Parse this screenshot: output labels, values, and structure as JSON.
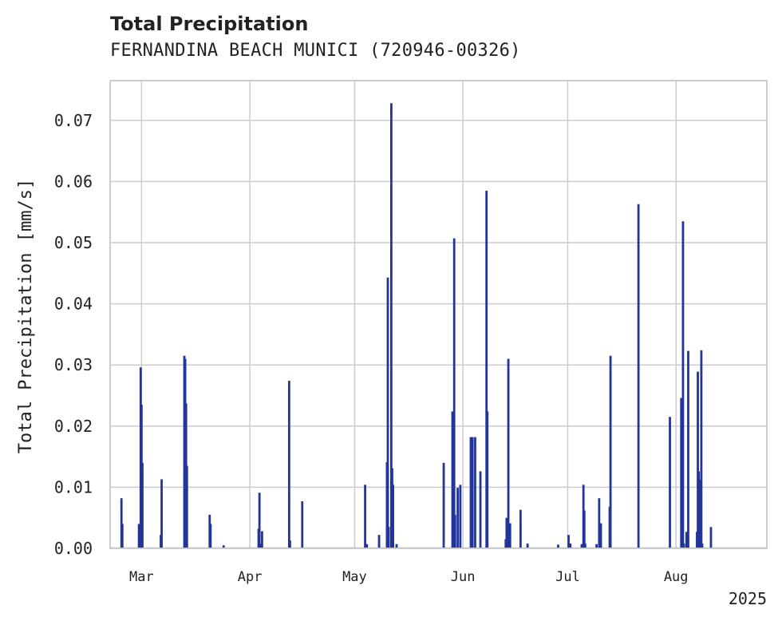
{
  "chart_data": {
    "type": "bar",
    "title": "Total Precipitation",
    "subtitle": "FERNANDINA BEACH MUNICI (720946-00326)",
    "xlabel": "",
    "ylabel": "Total Precipitation [mm/s]",
    "year_label": "2025",
    "ylim": [
      0,
      0.0765
    ],
    "yticks": [
      0.0,
      0.01,
      0.02,
      0.03,
      0.04,
      0.05,
      0.06,
      0.07
    ],
    "ytick_labels": [
      "0.00",
      "0.01",
      "0.02",
      "0.03",
      "0.04",
      "0.05",
      "0.06",
      "0.07"
    ],
    "xlim": [
      "2025-02-20",
      "2025-08-27"
    ],
    "xticks": [
      {
        "date": "2025-03-01",
        "label": "Mar"
      },
      {
        "date": "2025-04-01",
        "label": "Apr"
      },
      {
        "date": "2025-05-01",
        "label": "May"
      },
      {
        "date": "2025-06-01",
        "label": "Jun"
      },
      {
        "date": "2025-07-01",
        "label": "Jul"
      },
      {
        "date": "2025-08-01",
        "label": "Aug"
      }
    ],
    "grid": true,
    "bar_color": "#23359a",
    "series": [
      {
        "points": [
          [
            "2025-02-23T06:00",
            0.0082
          ],
          [
            "2025-02-23T12:00",
            0.004
          ],
          [
            "2025-02-28T06:00",
            0.004
          ],
          [
            "2025-02-28T12:00",
            0.0015
          ],
          [
            "2025-02-28T18:00",
            0.0296
          ],
          [
            "2025-03-01T00:00",
            0.0235
          ],
          [
            "2025-03-01T06:00",
            0.014
          ],
          [
            "2025-03-06T12:00",
            0.0022
          ],
          [
            "2025-03-06T18:00",
            0.0113
          ],
          [
            "2025-03-13T06:00",
            0.0315
          ],
          [
            "2025-03-13T12:00",
            0.031
          ],
          [
            "2025-03-13T18:00",
            0.0237
          ],
          [
            "2025-03-14T00:00",
            0.0135
          ],
          [
            "2025-03-20T12:00",
            0.0055
          ],
          [
            "2025-03-20T18:00",
            0.004
          ],
          [
            "2025-03-24T12:00",
            0.0005
          ],
          [
            "2025-04-03T12:00",
            0.0032
          ],
          [
            "2025-04-03T18:00",
            0.0091
          ],
          [
            "2025-04-04T00:00",
            0.0007
          ],
          [
            "2025-04-04T12:00",
            0.0028
          ],
          [
            "2025-04-12T06:00",
            0.0274
          ],
          [
            "2025-04-12T12:00",
            0.0013
          ],
          [
            "2025-04-16T00:00",
            0.0077
          ],
          [
            "2025-05-04T00:00",
            0.0104
          ],
          [
            "2025-05-04T12:00",
            0.0007
          ],
          [
            "2025-05-08T00:00",
            0.0022
          ],
          [
            "2025-05-10T06:00",
            0.0141
          ],
          [
            "2025-05-10T12:00",
            0.0443
          ],
          [
            "2025-05-10T18:00",
            0.0035
          ],
          [
            "2025-05-11T12:00",
            0.0728
          ],
          [
            "2025-05-11T18:00",
            0.0131
          ],
          [
            "2025-05-12T00:00",
            0.0104
          ],
          [
            "2025-05-13T00:00",
            0.0007
          ],
          [
            "2025-05-26T12:00",
            0.014
          ],
          [
            "2025-05-29T00:00",
            0.0224
          ],
          [
            "2025-05-29T12:00",
            0.0507
          ],
          [
            "2025-05-29T18:00",
            0.0055
          ],
          [
            "2025-05-30T12:00",
            0.0099
          ],
          [
            "2025-05-31T06:00",
            0.0104
          ],
          [
            "2025-06-03T06:00",
            0.0182
          ],
          [
            "2025-06-03T12:00",
            0.0112
          ],
          [
            "2025-06-03T18:00",
            0.0182
          ],
          [
            "2025-06-04T12:00",
            0.0182
          ],
          [
            "2025-06-06T00:00",
            0.0126
          ],
          [
            "2025-06-07T18:00",
            0.0585
          ],
          [
            "2025-06-08T00:00",
            0.0224
          ],
          [
            "2025-06-13T06:00",
            0.0015
          ],
          [
            "2025-06-13T12:00",
            0.005
          ],
          [
            "2025-06-14T00:00",
            0.031
          ],
          [
            "2025-06-14T12:00",
            0.0041
          ],
          [
            "2025-06-17T12:00",
            0.0063
          ],
          [
            "2025-06-19T12:00",
            0.0008
          ],
          [
            "2025-06-28T06:00",
            0.0006
          ],
          [
            "2025-07-01T06:00",
            0.0022
          ],
          [
            "2025-07-01T18:00",
            0.0008
          ],
          [
            "2025-07-05T00:00",
            0.0007
          ],
          [
            "2025-07-05T12:00",
            0.0104
          ],
          [
            "2025-07-05T18:00",
            0.0062
          ],
          [
            "2025-07-06T00:00",
            0.0008
          ],
          [
            "2025-07-09T06:00",
            0.0007
          ],
          [
            "2025-07-10T00:00",
            0.0082
          ],
          [
            "2025-07-10T12:00",
            0.0041
          ],
          [
            "2025-07-13T00:00",
            0.0068
          ],
          [
            "2025-07-13T06:00",
            0.0315
          ],
          [
            "2025-07-21T06:00",
            0.0563
          ],
          [
            "2025-07-30T06:00",
            0.0215
          ],
          [
            "2025-08-02T12:00",
            0.0246
          ],
          [
            "2025-08-02T18:00",
            0.0183
          ],
          [
            "2025-08-03T00:00",
            0.0535
          ],
          [
            "2025-08-03T06:00",
            0.0008
          ],
          [
            "2025-08-04T00:00",
            0.0027
          ],
          [
            "2025-08-04T12:00",
            0.0323
          ],
          [
            "2025-08-07T00:00",
            0.0027
          ],
          [
            "2025-08-07T06:00",
            0.0289
          ],
          [
            "2025-08-07T12:00",
            0.0126
          ],
          [
            "2025-08-07T18:00",
            0.0112
          ],
          [
            "2025-08-08T00:00",
            0.0077
          ],
          [
            "2025-08-08T06:00",
            0.0324
          ],
          [
            "2025-08-08T12:00",
            0.0008
          ],
          [
            "2025-08-11T00:00",
            0.0035
          ]
        ]
      }
    ]
  }
}
